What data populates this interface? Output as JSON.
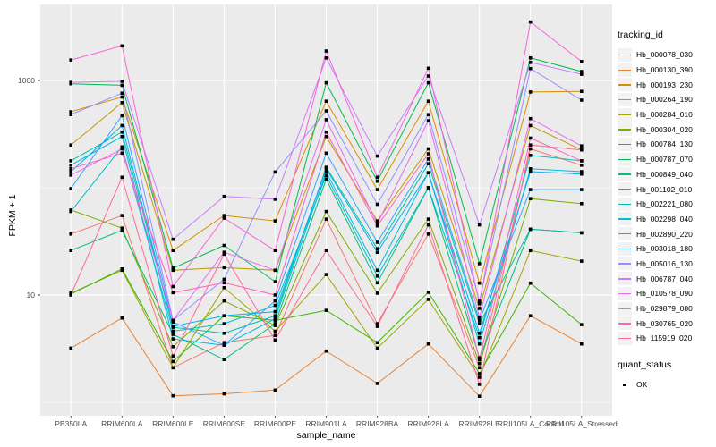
{
  "chart_data": {
    "type": "line",
    "title": "",
    "xlabel": "sample_name",
    "ylabel": "FPKM + 1",
    "y_scale": "log10",
    "y_tick_labels": [
      "10",
      "1000"
    ],
    "y_tick_values": [
      10,
      1000
    ],
    "y_gridlines_major": [
      10,
      1000
    ],
    "y_gridlines_minor": [
      1,
      100
    ],
    "y_range": [
      0.75,
      5100
    ],
    "grid_on": true,
    "panel_bg": "#EBEBEB",
    "grid_color": "#FFFFFF",
    "tick_color": "#333333",
    "axis_text_color": "#4D4D4D",
    "point_color": "#000000",
    "legend_position": "right",
    "categories": [
      "PB350LA",
      "RRIM600LA",
      "RRIM600LE",
      "RRIM600SE",
      "RRIM600PE",
      "RRIM901LA",
      "RRIM928BA",
      "RRIM928LA",
      "RRIM928LE",
      "RRII105LA_Control",
      "RRII105LA_Stressed"
    ],
    "series": [
      {
        "name": "Hb_000078_030",
        "color": "#F8766D",
        "values": [
          37,
          55,
          2.1,
          3.6,
          4.2,
          51,
          5.4,
          37,
          2.1,
          230,
          162
        ]
      },
      {
        "name": "Hb_000130_390",
        "color": "#EA8331",
        "values": [
          3.2,
          6.1,
          1.15,
          1.2,
          1.3,
          3.0,
          1.5,
          3.5,
          1.14,
          6.4,
          3.5
        ]
      },
      {
        "name": "Hb_000193_230",
        "color": "#D89000",
        "values": [
          510,
          700,
          26,
          55,
          49,
          640,
          96,
          640,
          12.9,
          780,
          790
        ]
      },
      {
        "name": "Hb_000264_190",
        "color": "#C09B00",
        "values": [
          250,
          620,
          17,
          18,
          17,
          300,
          49,
          230,
          7.5,
          380,
          225
        ]
      },
      {
        "name": "Hb_000284_010",
        "color": "#A3A500",
        "values": [
          10.4,
          17,
          2.1,
          11.7,
          4.6,
          15.5,
          3.2,
          9.1,
          1.71,
          26,
          20.7
        ]
      },
      {
        "name": "Hb_000304_020",
        "color": "#7CAE00",
        "values": [
          62,
          42,
          3.3,
          8.8,
          5.2,
          60,
          10.4,
          51,
          2.3,
          79,
          71
        ]
      },
      {
        "name": "Hb_000784_130",
        "color": "#39B600",
        "values": [
          10.2,
          17.5,
          2.4,
          6.4,
          5.8,
          7.2,
          3.6,
          10.6,
          1.85,
          12.9,
          5.3
        ]
      },
      {
        "name": "Hb_000787_070",
        "color": "#00BB4E",
        "values": [
          930,
          900,
          17.8,
          29,
          13.3,
          950,
          115,
          950,
          19.6,
          1620,
          1210
        ]
      },
      {
        "name": "Hb_000849_040",
        "color": "#00BF7D",
        "values": [
          26,
          40,
          4.3,
          2.5,
          5.4,
          120,
          13,
          100,
          2.6,
          41,
          38
        ]
      },
      {
        "name": "Hb_001102_010",
        "color": "#00C1A3",
        "values": [
          178,
          330,
          5.0,
          4.4,
          6.4,
          155,
          27,
          167,
          5.4,
          41,
          38
        ]
      },
      {
        "name": "Hb_002221_080",
        "color": "#00BFC4",
        "values": [
          60,
          240,
          4.6,
          5.4,
          8.0,
          130,
          15,
          100,
          4.0,
          200,
          178
        ]
      },
      {
        "name": "Hb_002298_040",
        "color": "#00BAE0",
        "values": [
          162,
          300,
          3.9,
          3.4,
          6.0,
          140,
          17,
          138,
          3.5,
          150,
          141
        ]
      },
      {
        "name": "Hb_002890_220",
        "color": "#00B0F6",
        "values": [
          141,
          380,
          5.1,
          6.4,
          7.0,
          150,
          25,
          138,
          4.4,
          141,
          134
        ]
      },
      {
        "name": "Hb_003018_180",
        "color": "#35A2FF",
        "values": [
          98,
          470,
          5.6,
          3.4,
          8.8,
          210,
          31,
          185,
          5.8,
          96,
          96
        ]
      },
      {
        "name": "Hb_005016_130",
        "color": "#9590FF",
        "values": [
          480,
          760,
          5.8,
          14,
          140,
          520,
          70,
          480,
          8.8,
          1290,
          655
        ]
      },
      {
        "name": "Hb_006787_040",
        "color": "#C77CFF",
        "values": [
          960,
          980,
          33,
          83,
          78,
          1620,
          197,
          1100,
          45,
          1470,
          1140
        ]
      },
      {
        "name": "Hb_010578_090",
        "color": "#E76BF3",
        "values": [
          131,
          230,
          5.8,
          25,
          17,
          430,
          46,
          420,
          6.2,
          440,
          245
        ]
      },
      {
        "name": "Hb_029879_080",
        "color": "#FA62DB",
        "values": [
          1550,
          2100,
          12,
          52,
          26,
          1880,
          125,
          1300,
          8.3,
          3500,
          1500
        ]
      },
      {
        "name": "Hb_030765_020",
        "color": "#FF62BC",
        "values": [
          150,
          210,
          10.5,
          13,
          10,
          330,
          44,
          207,
          2.5,
          290,
          178
        ]
      },
      {
        "name": "Hb_115919_020",
        "color": "#FF6A98",
        "values": [
          10,
          125,
          2.7,
          24,
          3.8,
          26,
          5.1,
          45,
          1.47,
          250,
          225
        ]
      }
    ],
    "legend_title": "tracking_id",
    "legend2_title": "quant_status",
    "legend2_items": [
      {
        "label": "OK"
      }
    ]
  }
}
